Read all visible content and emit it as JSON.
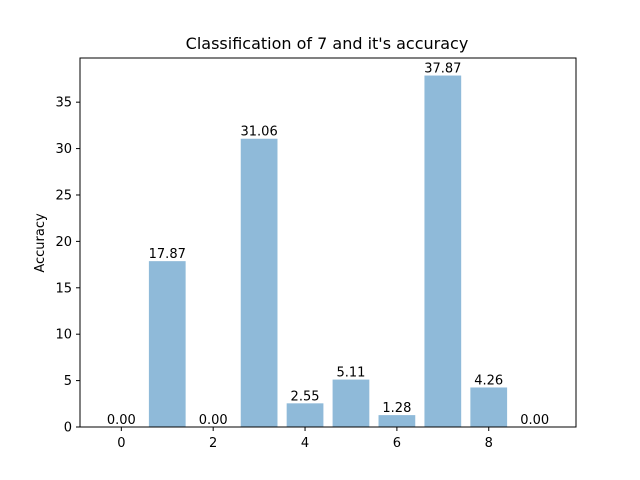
{
  "chart_data": {
    "type": "bar",
    "title": "Classification of 7 and it's accuracy",
    "xlabel": "",
    "ylabel": "Accuracy",
    "x": [
      0,
      1,
      2,
      3,
      4,
      5,
      6,
      7,
      8,
      9
    ],
    "values": [
      0.0,
      17.87,
      0.0,
      31.06,
      2.55,
      5.11,
      1.28,
      37.87,
      4.26,
      0.0
    ],
    "data_labels": [
      "0.00",
      "17.87",
      "0.00",
      "31.06",
      "2.55",
      "5.11",
      "1.28",
      "37.87",
      "4.26",
      "0.00"
    ],
    "xticks": [
      0,
      2,
      4,
      6,
      8
    ],
    "yticks": [
      0,
      5,
      10,
      15,
      20,
      25,
      30,
      35
    ],
    "xlim": [
      -0.9,
      9.9
    ],
    "ylim": [
      0,
      39.76
    ],
    "bar_color": "#8fbad9",
    "grid": false,
    "legend": "none"
  }
}
